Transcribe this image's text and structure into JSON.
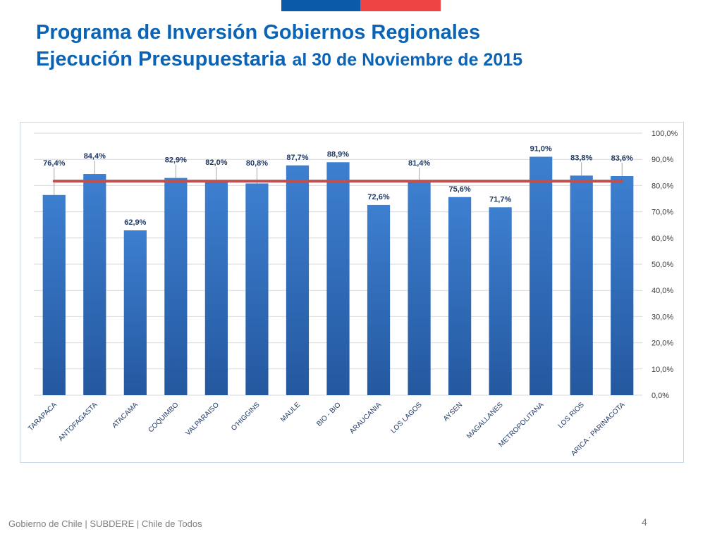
{
  "header": {
    "title_line1": "Programa de Inversión Gobiernos Regionales",
    "title_line2_bold": "Ejecución Presupuestaria",
    "title_line2_rest": "al 30 de Noviembre de 2015"
  },
  "footer": {
    "text": "Gobierno de Chile | SUBDERE | Chile de Todos",
    "page_number": "4"
  },
  "colors": {
    "flag_blue": "#0a5aa7",
    "flag_red": "#ef4444",
    "title": "#0b63b5",
    "bar_top": "#3d7fd0",
    "bar_bottom": "#24589f",
    "avg_line": "#c0504d",
    "gridline": "#d9d9d9",
    "label": "#1f3864"
  },
  "chart_data": {
    "type": "bar",
    "title": "",
    "xlabel": "",
    "ylabel": "",
    "ylim": [
      0,
      100
    ],
    "ytick_step": 10,
    "ytick_labels": [
      "0,0%",
      "10,0%",
      "20,0%",
      "30,0%",
      "40,0%",
      "50,0%",
      "60,0%",
      "70,0%",
      "80,0%",
      "90,0%",
      "100,0%"
    ],
    "grid": true,
    "y_axis_side": "right",
    "categories": [
      "TARAPACA",
      "ANTOFAGASTA",
      "ATACAMA",
      "COQUIMBO",
      "VALPARAISO",
      "O'HIGGINS",
      "MAULE",
      "BIO - BIO",
      "ARAUCANIA",
      "LOS LAGOS",
      "AYSEN",
      "MAGALLANES",
      "METROPOLITANA",
      "LOS RIOS",
      "ARICA - PARINACOTA"
    ],
    "values": [
      76.4,
      84.4,
      62.9,
      82.9,
      82.0,
      80.8,
      87.7,
      88.9,
      72.6,
      81.4,
      75.6,
      71.7,
      91.0,
      83.8,
      83.6
    ],
    "value_labels": [
      "76,4%",
      "84,4%",
      "62,9%",
      "82,9%",
      "82,0%",
      "80,8%",
      "87,7%",
      "88,9%",
      "72,6%",
      "81,4%",
      "75,6%",
      "71,7%",
      "91,0%",
      "83,8%",
      "83,6%"
    ],
    "reference_line": {
      "value": 81.7
    }
  }
}
